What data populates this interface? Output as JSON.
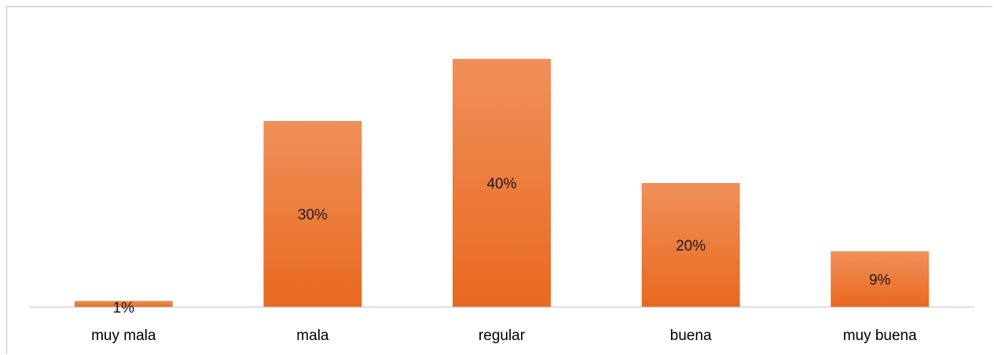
{
  "chart_data": {
    "type": "bar",
    "categories": [
      "muy mala",
      "mala",
      "regular",
      "buena",
      "muy buena"
    ],
    "values": [
      1,
      30,
      40,
      20,
      9
    ],
    "data_labels": [
      "1%",
      "30%",
      "40%",
      "20%",
      "9%"
    ],
    "title": "",
    "xlabel": "",
    "ylabel": "",
    "ylim": [
      0,
      40
    ],
    "grid": false,
    "legend": "none",
    "colors": {
      "bar_top": "#f0905a",
      "bar_bottom": "#e8691f",
      "axis": "#bfbfbf"
    }
  }
}
